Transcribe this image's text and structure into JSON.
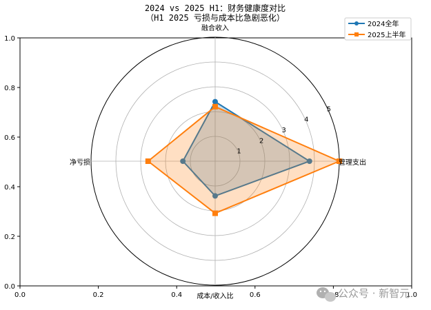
{
  "chart_data": {
    "type": "radar",
    "title_lines": [
      "2024 vs 2025 H1：财务健康度对比",
      "（H1 2025 亏损与成本比急剧恶化）"
    ],
    "axes": [
      "融合收入",
      "管理支出",
      "成本/收入比",
      "净亏损"
    ],
    "rlim": [
      0,
      5
    ],
    "radial_ticks": [
      "1",
      "2",
      "3",
      "4",
      "5"
    ],
    "series": [
      {
        "name": "2024全年",
        "values": [
          2.4,
          3.8,
          1.4,
          1.3
        ],
        "color": "#1f77b4",
        "marker": "circle"
      },
      {
        "name": "2025上半年",
        "values": [
          2.2,
          5.0,
          2.1,
          2.7
        ],
        "color": "#ff7f0e",
        "marker": "square"
      }
    ],
    "frame_ticks": {
      "x": [
        "0.0",
        "0.2",
        "0.4",
        "0.6",
        "0.8",
        "1.0"
      ],
      "y": [
        "0.0",
        "0.2",
        "0.4",
        "0.6",
        "0.8",
        "1.0"
      ]
    },
    "legend_position": "top-right",
    "grid": true
  },
  "watermark": {
    "text": "公众号 · 新智元",
    "icon": "wechat-icon"
  }
}
